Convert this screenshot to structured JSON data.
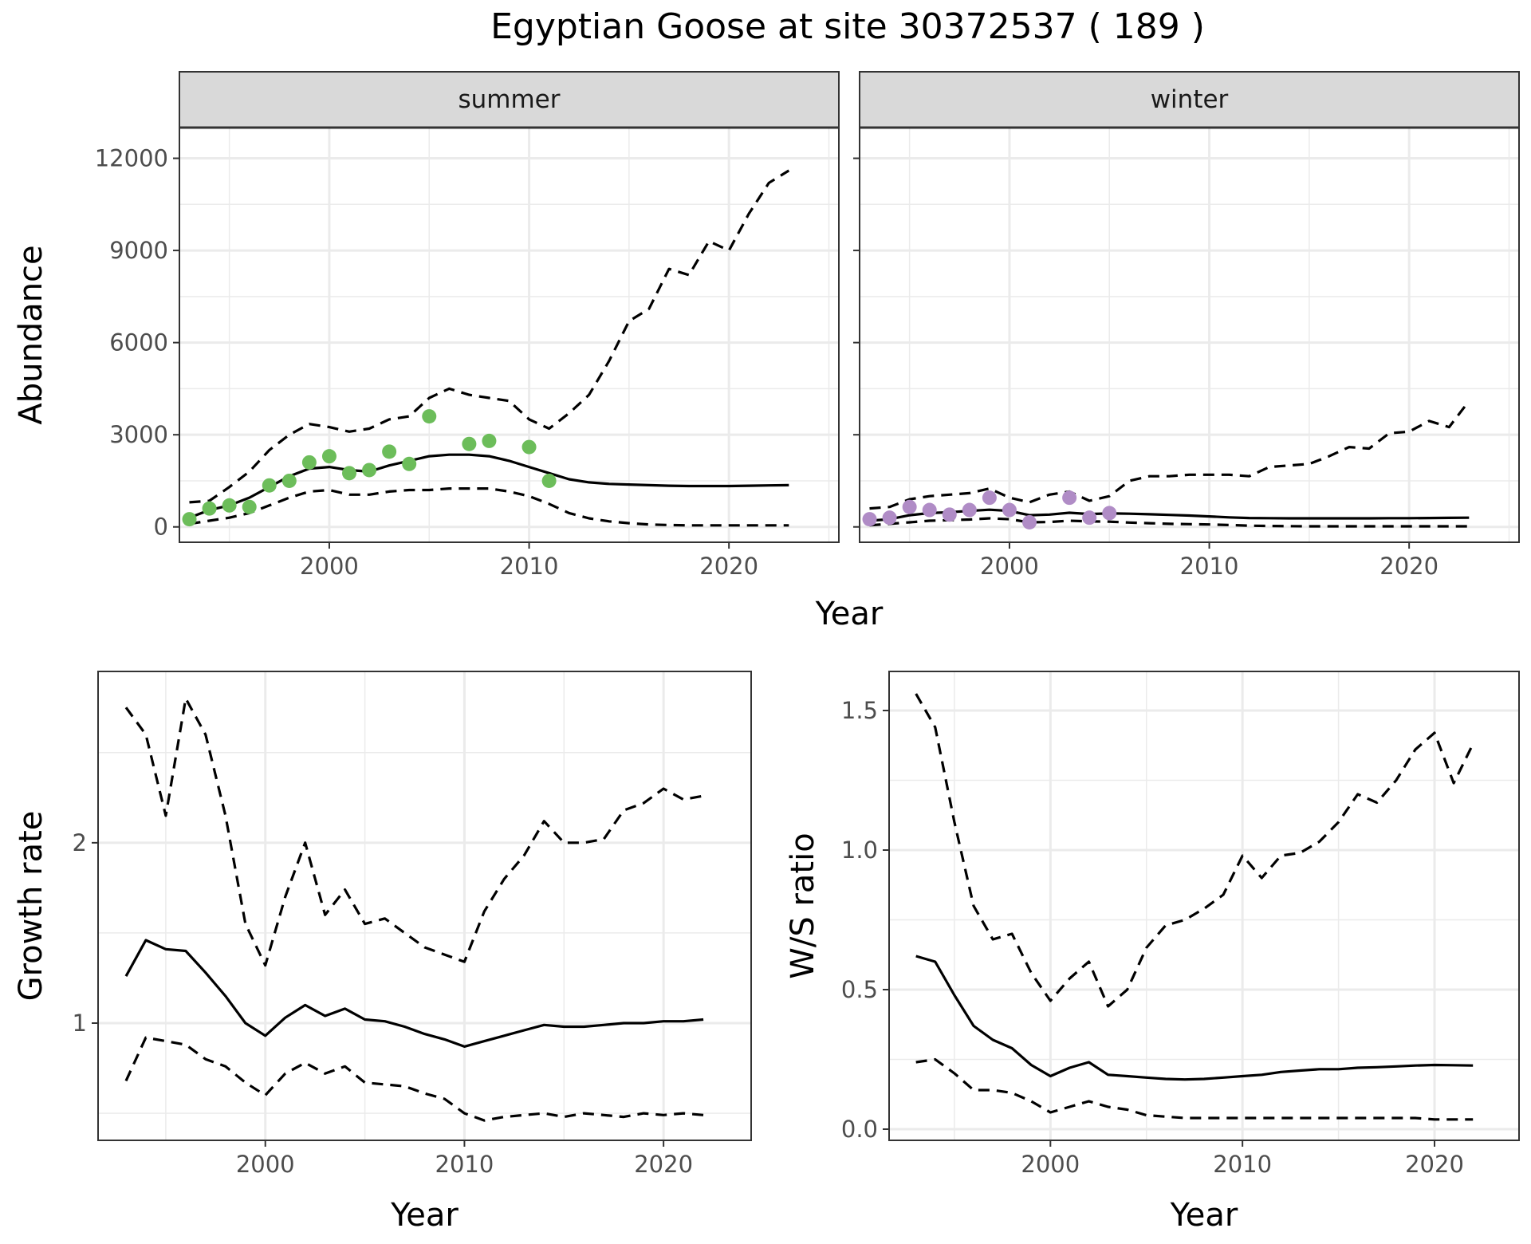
{
  "title": "Egyptian Goose at site 30372537 ( 189 )",
  "colors": {
    "summer_points": "#6cbd5a",
    "winter_points": "#b08cc6",
    "line": "#000000",
    "strip": "#d9d9d9",
    "grid": "#ebebeb"
  },
  "chart_data": [
    {
      "type": "line",
      "panel": "summer",
      "strip_label": "summer",
      "xlabel": "Year",
      "ylabel": "Abundance",
      "xlim": [
        1992.5,
        2025.5
      ],
      "ylim": [
        -500,
        13000
      ],
      "xticks": [
        2000,
        2010,
        2020
      ],
      "yticks": [
        0,
        3000,
        6000,
        9000,
        12000
      ],
      "grid": true,
      "series": [
        {
          "style": "solid",
          "x": [
            1993,
            1994,
            1995,
            1996,
            1997,
            1998,
            1999,
            2000,
            2001,
            2002,
            2003,
            2004,
            2005,
            2006,
            2007,
            2008,
            2009,
            2010,
            2011,
            2012,
            2013,
            2014,
            2015,
            2016,
            2017,
            2018,
            2019,
            2020,
            2021,
            2022,
            2023
          ],
          "y": [
            300,
            550,
            700,
            950,
            1300,
            1650,
            1900,
            1950,
            1850,
            1800,
            2000,
            2150,
            2300,
            2350,
            2350,
            2300,
            2150,
            1950,
            1750,
            1550,
            1450,
            1400,
            1380,
            1360,
            1340,
            1330,
            1330,
            1330,
            1340,
            1350,
            1360
          ]
        },
        {
          "style": "dashed",
          "x": [
            1993,
            1994,
            1995,
            1996,
            1997,
            1998,
            1999,
            2000,
            2001,
            2002,
            2003,
            2004,
            2005,
            2006,
            2007,
            2008,
            2009,
            2010,
            2011,
            2012,
            2013,
            2014,
            2015,
            2016,
            2017,
            2018,
            2019,
            2020,
            2021,
            2022,
            2023
          ],
          "y": [
            800,
            850,
            1300,
            1800,
            2500,
            3000,
            3350,
            3250,
            3100,
            3200,
            3500,
            3600,
            4200,
            4500,
            4300,
            4200,
            4100,
            3500,
            3200,
            3700,
            4300,
            5400,
            6700,
            7100,
            8400,
            8200,
            9300,
            9000,
            10200,
            11200,
            11600
          ]
        },
        {
          "style": "dashed",
          "x": [
            1993,
            1994,
            1995,
            1996,
            1997,
            1998,
            1999,
            2000,
            2001,
            2002,
            2003,
            2004,
            2005,
            2006,
            2007,
            2008,
            2009,
            2010,
            2011,
            2012,
            2013,
            2014,
            2015,
            2016,
            2017,
            2018,
            2019,
            2020,
            2021,
            2022,
            2023
          ],
          "y": [
            100,
            200,
            300,
            450,
            700,
            950,
            1150,
            1200,
            1050,
            1050,
            1150,
            1200,
            1200,
            1250,
            1250,
            1250,
            1150,
            1000,
            750,
            450,
            280,
            180,
            120,
            80,
            60,
            50,
            50,
            50,
            50,
            50,
            50
          ]
        }
      ],
      "points": {
        "x": [
          1993,
          1994,
          1995,
          1996,
          1997,
          1998,
          1999,
          2000,
          2001,
          2002,
          2003,
          2004,
          2005,
          2007,
          2008,
          2010,
          2011
        ],
        "y": [
          250,
          600,
          700,
          650,
          1350,
          1500,
          2100,
          2300,
          1750,
          1850,
          2450,
          2050,
          3600,
          2700,
          2800,
          2600,
          1500
        ]
      }
    },
    {
      "type": "line",
      "panel": "winter",
      "strip_label": "winter",
      "xlabel": "Year",
      "ylabel": "",
      "xlim": [
        1992.5,
        2025.5
      ],
      "ylim": [
        -500,
        13000
      ],
      "xticks": [
        2000,
        2010,
        2020
      ],
      "yticks": [
        0,
        3000,
        6000,
        9000,
        12000
      ],
      "grid": true,
      "series": [
        {
          "style": "solid",
          "x": [
            1993,
            1994,
            1995,
            1996,
            1997,
            1998,
            1999,
            2000,
            2001,
            2002,
            2003,
            2004,
            2005,
            2006,
            2007,
            2008,
            2009,
            2010,
            2011,
            2012,
            2013,
            2014,
            2015,
            2016,
            2017,
            2018,
            2019,
            2020,
            2021,
            2022,
            2023
          ],
          "y": [
            200,
            250,
            380,
            450,
            480,
            520,
            560,
            520,
            380,
            400,
            460,
            420,
            440,
            430,
            410,
            390,
            370,
            340,
            310,
            290,
            285,
            280,
            280,
            280,
            280,
            280,
            285,
            285,
            290,
            295,
            300
          ]
        },
        {
          "style": "dashed",
          "x": [
            1993,
            1994,
            1995,
            1996,
            1997,
            1998,
            1999,
            2000,
            2001,
            2002,
            2003,
            2004,
            2005,
            2006,
            2007,
            2008,
            2009,
            2010,
            2011,
            2012,
            2013,
            2014,
            2015,
            2016,
            2017,
            2018,
            2019,
            2020,
            2021,
            2022,
            2023
          ],
          "y": [
            600,
            650,
            900,
            1000,
            1050,
            1100,
            1250,
            950,
            800,
            1050,
            1150,
            850,
            1000,
            1500,
            1650,
            1650,
            1700,
            1700,
            1700,
            1650,
            1950,
            2000,
            2050,
            2300,
            2600,
            2550,
            3050,
            3100,
            3450,
            3250,
            4100
          ]
        },
        {
          "style": "dashed",
          "x": [
            1993,
            1994,
            1995,
            1996,
            1997,
            1998,
            1999,
            2000,
            2001,
            2002,
            2003,
            2004,
            2005,
            2006,
            2007,
            2008,
            2009,
            2010,
            2011,
            2012,
            2013,
            2014,
            2015,
            2016,
            2017,
            2018,
            2019,
            2020,
            2021,
            2022,
            2023
          ],
          "y": [
            50,
            100,
            150,
            200,
            220,
            240,
            280,
            250,
            150,
            160,
            200,
            180,
            170,
            140,
            120,
            100,
            90,
            80,
            60,
            40,
            30,
            25,
            20,
            20,
            20,
            20,
            20,
            20,
            20,
            20,
            20
          ]
        }
      ],
      "points": {
        "x": [
          1993,
          1994,
          1995,
          1996,
          1997,
          1998,
          1999,
          2000,
          2001,
          2003,
          2004,
          2005
        ],
        "y": [
          250,
          300,
          650,
          550,
          400,
          550,
          950,
          550,
          150,
          950,
          300,
          450
        ]
      }
    },
    {
      "type": "line",
      "panel": "growth",
      "xlabel": "Year",
      "ylabel": "Growth rate",
      "xlim": [
        1991.6,
        2024.4
      ],
      "ylim": [
        0.35,
        2.95
      ],
      "xticks": [
        2000,
        2010,
        2020
      ],
      "yticks": [
        1,
        2
      ],
      "grid": true,
      "series": [
        {
          "style": "solid",
          "x": [
            1993,
            1994,
            1995,
            1996,
            1997,
            1998,
            1999,
            2000,
            2001,
            2002,
            2003,
            2004,
            2005,
            2006,
            2007,
            2008,
            2009,
            2010,
            2011,
            2012,
            2013,
            2014,
            2015,
            2016,
            2017,
            2018,
            2019,
            2020,
            2021,
            2022
          ],
          "y": [
            1.26,
            1.46,
            1.41,
            1.4,
            1.28,
            1.15,
            1.0,
            0.93,
            1.03,
            1.1,
            1.04,
            1.08,
            1.02,
            1.01,
            0.98,
            0.94,
            0.91,
            0.87,
            0.9,
            0.93,
            0.96,
            0.99,
            0.98,
            0.98,
            0.99,
            1.0,
            1.0,
            1.01,
            1.01,
            1.02
          ]
        },
        {
          "style": "dashed",
          "x": [
            1993,
            1994,
            1995,
            1996,
            1997,
            1998,
            1999,
            2000,
            2001,
            2002,
            2003,
            2004,
            2005,
            2006,
            2007,
            2008,
            2009,
            2010,
            2011,
            2012,
            2013,
            2014,
            2015,
            2016,
            2017,
            2018,
            2019,
            2020,
            2021,
            2022
          ],
          "y": [
            2.75,
            2.6,
            2.15,
            2.8,
            2.6,
            2.15,
            1.55,
            1.32,
            1.7,
            2.0,
            1.6,
            1.74,
            1.55,
            1.58,
            1.5,
            1.42,
            1.38,
            1.34,
            1.62,
            1.8,
            1.93,
            2.12,
            2.0,
            2.0,
            2.02,
            2.18,
            2.22,
            2.3,
            2.24,
            2.26
          ]
        },
        {
          "style": "dashed",
          "x": [
            1993,
            1994,
            1995,
            1996,
            1997,
            1998,
            1999,
            2000,
            2001,
            2002,
            2003,
            2004,
            2005,
            2006,
            2007,
            2008,
            2009,
            2010,
            2011,
            2012,
            2013,
            2014,
            2015,
            2016,
            2017,
            2018,
            2019,
            2020,
            2021,
            2022
          ],
          "y": [
            0.68,
            0.92,
            0.9,
            0.88,
            0.8,
            0.76,
            0.67,
            0.6,
            0.72,
            0.78,
            0.72,
            0.76,
            0.67,
            0.66,
            0.65,
            0.61,
            0.58,
            0.5,
            0.46,
            0.48,
            0.49,
            0.5,
            0.48,
            0.5,
            0.49,
            0.48,
            0.5,
            0.49,
            0.5,
            0.49
          ]
        }
      ]
    },
    {
      "type": "line",
      "panel": "ratio",
      "xlabel": "Year",
      "ylabel": "W/S ratio",
      "xlim": [
        1991.6,
        2024.4
      ],
      "ylim": [
        -0.04,
        1.64
      ],
      "xticks": [
        2000,
        2010,
        2020
      ],
      "yticks": [
        0.0,
        0.5,
        1.0,
        1.5
      ],
      "ytick_labels": [
        "0.0",
        "0.5",
        "1.0",
        "1.5"
      ],
      "grid": true,
      "series": [
        {
          "style": "solid",
          "x": [
            1993,
            1994,
            1995,
            1996,
            1997,
            1998,
            1999,
            2000,
            2001,
            2002,
            2003,
            2004,
            2005,
            2006,
            2007,
            2008,
            2009,
            2010,
            2011,
            2012,
            2013,
            2014,
            2015,
            2016,
            2017,
            2018,
            2019,
            2020,
            2021,
            2022
          ],
          "y": [
            0.62,
            0.6,
            0.48,
            0.37,
            0.32,
            0.29,
            0.23,
            0.19,
            0.22,
            0.24,
            0.195,
            0.19,
            0.185,
            0.18,
            0.178,
            0.18,
            0.185,
            0.19,
            0.195,
            0.205,
            0.21,
            0.215,
            0.215,
            0.22,
            0.222,
            0.225,
            0.228,
            0.23,
            0.229,
            0.228
          ]
        },
        {
          "style": "dashed",
          "x": [
            1993,
            1994,
            1995,
            1996,
            1997,
            1998,
            1999,
            2000,
            2001,
            2002,
            2003,
            2004,
            2005,
            2006,
            2007,
            2008,
            2009,
            2010,
            2011,
            2012,
            2013,
            2014,
            2015,
            2016,
            2017,
            2018,
            2019,
            2020,
            2021,
            2022
          ],
          "y": [
            1.56,
            1.44,
            1.1,
            0.8,
            0.68,
            0.7,
            0.56,
            0.46,
            0.54,
            0.6,
            0.44,
            0.5,
            0.65,
            0.73,
            0.75,
            0.79,
            0.84,
            0.98,
            0.9,
            0.98,
            0.99,
            1.03,
            1.1,
            1.2,
            1.17,
            1.25,
            1.36,
            1.42,
            1.24,
            1.38
          ]
        },
        {
          "style": "dashed",
          "x": [
            1993,
            1994,
            1995,
            1996,
            1997,
            1998,
            1999,
            2000,
            2001,
            2002,
            2003,
            2004,
            2005,
            2006,
            2007,
            2008,
            2009,
            2010,
            2011,
            2012,
            2013,
            2014,
            2015,
            2016,
            2017,
            2018,
            2019,
            2020,
            2021,
            2022
          ],
          "y": [
            0.24,
            0.25,
            0.2,
            0.14,
            0.14,
            0.13,
            0.1,
            0.06,
            0.08,
            0.1,
            0.08,
            0.07,
            0.05,
            0.045,
            0.04,
            0.04,
            0.04,
            0.04,
            0.04,
            0.04,
            0.04,
            0.04,
            0.04,
            0.04,
            0.04,
            0.04,
            0.04,
            0.035,
            0.035,
            0.035
          ]
        }
      ]
    }
  ]
}
